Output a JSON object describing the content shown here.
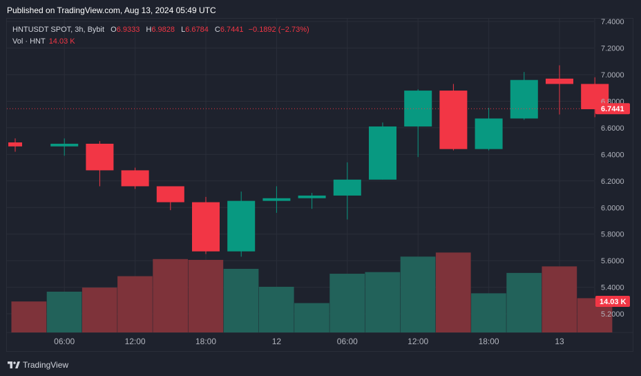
{
  "header": {
    "published": "Published on TradingView.com, Aug 13, 2024 05:49 UTC"
  },
  "legend": {
    "symbol": "HNTUSDT SPOT, 3h, Bybit",
    "open_label": "O",
    "open": "6.9333",
    "high_label": "H",
    "high": "6.9828",
    "low_label": "L",
    "low": "6.6784",
    "close_label": "C",
    "close": "6.7441",
    "change": "−0.1892 (−2.73%)",
    "volume_label": "Vol · HNT",
    "volume": "14.03 K"
  },
  "price_tag": "6.7441",
  "volume_tag": "14.03 K",
  "footer": {
    "brand": "TradingView"
  },
  "colors": {
    "up": "#089981",
    "down": "#f23645",
    "up_vol": "#22625a",
    "down_vol": "#7e333a",
    "background": "#1e222d",
    "grid": "#2a2e39"
  },
  "chart_data": {
    "type": "candlestick",
    "symbol": "HNTUSDT",
    "y_ticks": [
      "7.4000",
      "7.2000",
      "7.0000",
      "6.8000",
      "6.6000",
      "6.4000",
      "6.2000",
      "6.0000",
      "5.8000",
      "5.6000",
      "5.4000",
      "5.2000"
    ],
    "x_ticks": [
      "06:00",
      "12:00",
      "18:00",
      "12",
      "06:00",
      "12:00",
      "18:00",
      "13"
    ],
    "ylim": [
      5.0,
      7.4
    ],
    "last_price": 6.7441,
    "candles": [
      {
        "o": 6.49,
        "h": 6.52,
        "l": 6.42,
        "c": 6.46,
        "vol": "down"
      },
      {
        "o": 6.46,
        "h": 6.52,
        "l": 6.39,
        "c": 6.48,
        "vol": "up"
      },
      {
        "o": 6.48,
        "h": 6.5,
        "l": 6.16,
        "c": 6.28,
        "vol": "down"
      },
      {
        "o": 6.28,
        "h": 6.3,
        "l": 6.14,
        "c": 6.16,
        "vol": "down"
      },
      {
        "o": 6.16,
        "h": 6.16,
        "l": 5.98,
        "c": 6.04,
        "vol": "down"
      },
      {
        "o": 6.04,
        "h": 6.08,
        "l": 5.65,
        "c": 5.67,
        "vol": "down"
      },
      {
        "o": 5.67,
        "h": 6.12,
        "l": 5.63,
        "c": 6.05,
        "vol": "up"
      },
      {
        "o": 6.05,
        "h": 6.16,
        "l": 5.96,
        "c": 6.07,
        "vol": "up"
      },
      {
        "o": 6.07,
        "h": 6.11,
        "l": 5.99,
        "c": 6.09,
        "vol": "up"
      },
      {
        "o": 6.09,
        "h": 6.34,
        "l": 5.91,
        "c": 6.21,
        "vol": "up"
      },
      {
        "o": 6.21,
        "h": 6.64,
        "l": 6.21,
        "c": 6.61,
        "vol": "up"
      },
      {
        "o": 6.61,
        "h": 6.89,
        "l": 6.38,
        "c": 6.88,
        "vol": "up"
      },
      {
        "o": 6.88,
        "h": 6.93,
        "l": 6.43,
        "c": 6.44,
        "vol": "down"
      },
      {
        "o": 6.44,
        "h": 6.75,
        "l": 6.43,
        "c": 6.67,
        "vol": "up"
      },
      {
        "o": 6.67,
        "h": 7.02,
        "l": 6.66,
        "c": 6.96,
        "vol": "up"
      },
      {
        "o": 6.97,
        "h": 7.07,
        "l": 6.7,
        "c": 6.93,
        "vol": "down"
      },
      {
        "o": 6.93,
        "h": 6.98,
        "l": 6.68,
        "c": 6.74,
        "vol": "down"
      }
    ],
    "volume_rel": [
      0.38,
      0.5,
      0.55,
      0.69,
      0.9,
      0.89,
      0.78,
      0.56,
      0.36,
      0.72,
      0.74,
      0.93,
      0.98,
      0.48,
      0.73,
      0.81,
      0.42
    ]
  }
}
